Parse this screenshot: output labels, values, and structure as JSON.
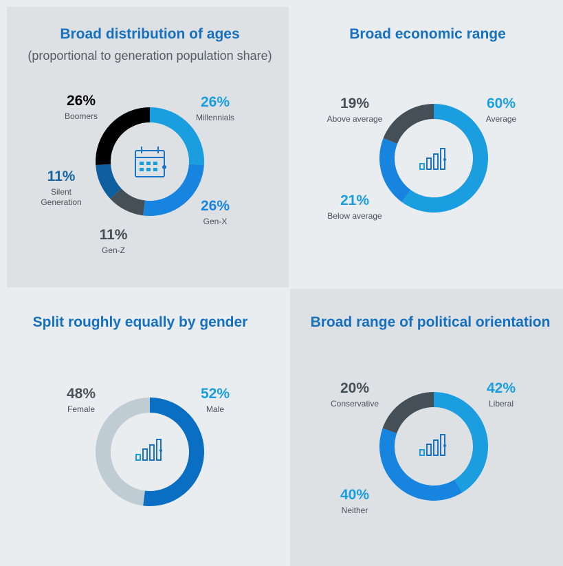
{
  "chart_data": [
    {
      "type": "pie",
      "title": "Broad distribution of ages",
      "subtitle": "(proportional to generation population share)",
      "categories": [
        "Millennials",
        "Gen-X",
        "Gen-Z",
        "Silent Generation",
        "Boomers"
      ],
      "values": [
        26,
        26,
        11,
        11,
        26
      ],
      "value_labels": [
        "26%",
        "26%",
        "11%",
        "11%",
        "26%"
      ],
      "colors": [
        "#1a9ee0",
        "#1784e0",
        "#454f57",
        "#0d5fa0",
        "#000000"
      ],
      "label_colors": [
        "#1a9ee0",
        "#1784e0",
        "#454f57",
        "#1465a5",
        "#000000"
      ]
    },
    {
      "type": "pie",
      "title": "Broad economic range",
      "categories": [
        "Average",
        "Below average",
        "Above average"
      ],
      "values": [
        60,
        21,
        19
      ],
      "value_labels": [
        "60%",
        "21%",
        "19%"
      ],
      "colors": [
        "#1a9ee0",
        "#1784e0",
        "#454f57"
      ],
      "label_colors": [
        "#1a9ee0",
        "#1a9ee0",
        "#454f57"
      ]
    },
    {
      "type": "pie",
      "title": "Split roughly equally by gender",
      "categories": [
        "Male",
        "Female"
      ],
      "values": [
        52,
        48
      ],
      "value_labels": [
        "52%",
        "48%"
      ],
      "colors": [
        "#0a6fc2",
        "#c0ccd4"
      ],
      "label_colors": [
        "#1a9ee0",
        "#4a5258"
      ]
    },
    {
      "type": "pie",
      "title": "Broad range of political orientation",
      "categories": [
        "Liberal",
        "Neither",
        "Conservative"
      ],
      "values": [
        42,
        40,
        20
      ],
      "value_labels": [
        "42%",
        "40%",
        "20%"
      ],
      "colors": [
        "#1a9ee0",
        "#1784e0",
        "#454f57"
      ],
      "label_colors": [
        "#1a9ee0",
        "#1a9ee0",
        "#454f57"
      ]
    }
  ]
}
